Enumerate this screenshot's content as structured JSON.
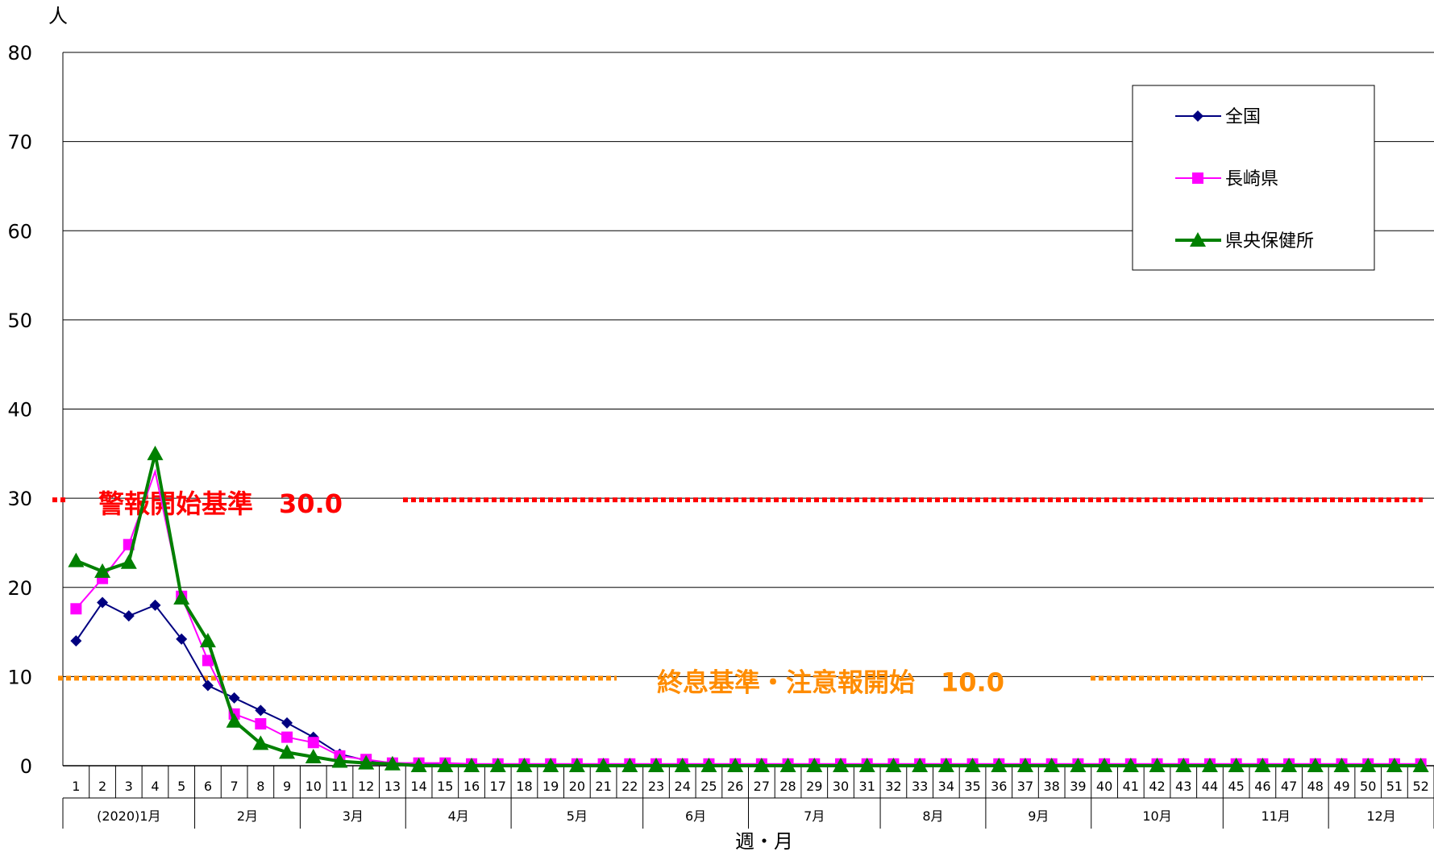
{
  "chart_data": {
    "type": "line",
    "ylabel": "人",
    "xlabel": "週・月",
    "ylim": [
      0,
      80
    ],
    "yticks": [
      0,
      10,
      20,
      30,
      40,
      50,
      60,
      70,
      80
    ],
    "grid": true,
    "legend_position": "top-right",
    "x": [
      "1",
      "2",
      "3",
      "4",
      "5",
      "6",
      "7",
      "8",
      "9",
      "10",
      "11",
      "12",
      "13",
      "14",
      "15",
      "16",
      "17",
      "18",
      "19",
      "20",
      "21",
      "22",
      "23",
      "24",
      "25",
      "26",
      "27",
      "28",
      "29",
      "30",
      "31",
      "32",
      "33",
      "34",
      "35",
      "36",
      "37",
      "38",
      "39",
      "40",
      "41",
      "42",
      "43",
      "44",
      "45",
      "46",
      "47",
      "48",
      "49",
      "50",
      "51",
      "52"
    ],
    "months": [
      {
        "label": "(2020)1月",
        "start": 1,
        "end": 5
      },
      {
        "label": "2月",
        "start": 6,
        "end": 9
      },
      {
        "label": "3月",
        "start": 10,
        "end": 13
      },
      {
        "label": "4月",
        "start": 14,
        "end": 17
      },
      {
        "label": "5月",
        "start": 18,
        "end": 22
      },
      {
        "label": "6月",
        "start": 23,
        "end": 26
      },
      {
        "label": "7月",
        "start": 27,
        "end": 31
      },
      {
        "label": "8月",
        "start": 32,
        "end": 35
      },
      {
        "label": "9月",
        "start": 36,
        "end": 39
      },
      {
        "label": "10月",
        "start": 40,
        "end": 44
      },
      {
        "label": "11月",
        "start": 45,
        "end": 48
      },
      {
        "label": "12月",
        "start": 49,
        "end": 52
      }
    ],
    "series": [
      {
        "name": "全国",
        "color": "#000080",
        "marker": "diamond",
        "values": [
          14.0,
          18.3,
          16.8,
          18.0,
          14.2,
          9.0,
          7.6,
          6.2,
          4.8,
          3.2,
          1.3,
          0.6,
          0.3,
          0.2,
          0.1,
          0.1,
          0.1,
          0.1,
          0.1,
          0.1,
          0.1,
          0.1,
          0.1,
          0.1,
          0.1,
          0.1,
          0.1,
          0.1,
          0.1,
          0.1,
          0.1,
          0.1,
          0.1,
          0.1,
          0.1,
          0.1,
          0.1,
          0.1,
          0.1,
          0.1,
          0.1,
          0.1,
          0.1,
          0.1,
          0.1,
          0.1,
          0.1,
          0.1,
          0.1,
          0.1,
          0.1,
          0.1
        ]
      },
      {
        "name": "長崎県",
        "color": "#ff00ff",
        "marker": "square",
        "values": [
          17.6,
          21.0,
          24.8,
          33.0,
          19.0,
          11.8,
          5.8,
          4.7,
          3.2,
          2.6,
          1.1,
          0.7,
          0.3,
          0.3,
          0.3,
          0.2,
          0.2,
          0.2,
          0.2,
          0.2,
          0.2,
          0.2,
          0.2,
          0.2,
          0.2,
          0.2,
          0.2,
          0.2,
          0.2,
          0.2,
          0.2,
          0.2,
          0.2,
          0.2,
          0.2,
          0.2,
          0.2,
          0.2,
          0.2,
          0.2,
          0.2,
          0.2,
          0.2,
          0.2,
          0.2,
          0.2,
          0.2,
          0.2,
          0.2,
          0.2,
          0.2,
          0.2
        ]
      },
      {
        "name": "県央保健所",
        "color": "#008000",
        "marker": "triangle",
        "values": [
          23.0,
          21.8,
          22.8,
          35.0,
          18.8,
          14.0,
          5.0,
          2.5,
          1.5,
          1.0,
          0.5,
          0.3,
          0.2,
          0.0,
          0.0,
          0.0,
          0.0,
          0.0,
          0.0,
          0.0,
          0.0,
          0.0,
          0.0,
          0.0,
          0.0,
          0.0,
          0.0,
          0.0,
          0.0,
          0.0,
          0.0,
          0.0,
          0.0,
          0.0,
          0.0,
          0.0,
          0.0,
          0.0,
          0.0,
          0.0,
          0.0,
          0.0,
          0.0,
          0.0,
          0.0,
          0.0,
          0.0,
          0.0,
          0.0,
          0.0,
          0.0,
          0.0
        ]
      }
    ],
    "thresholds": [
      {
        "label": "警報開始基準　30.0",
        "value": 30.0,
        "color": "#ff0000"
      },
      {
        "label": "終息基準・注意報開始　10.0",
        "value": 10.0,
        "color": "#ff8c00"
      }
    ]
  }
}
